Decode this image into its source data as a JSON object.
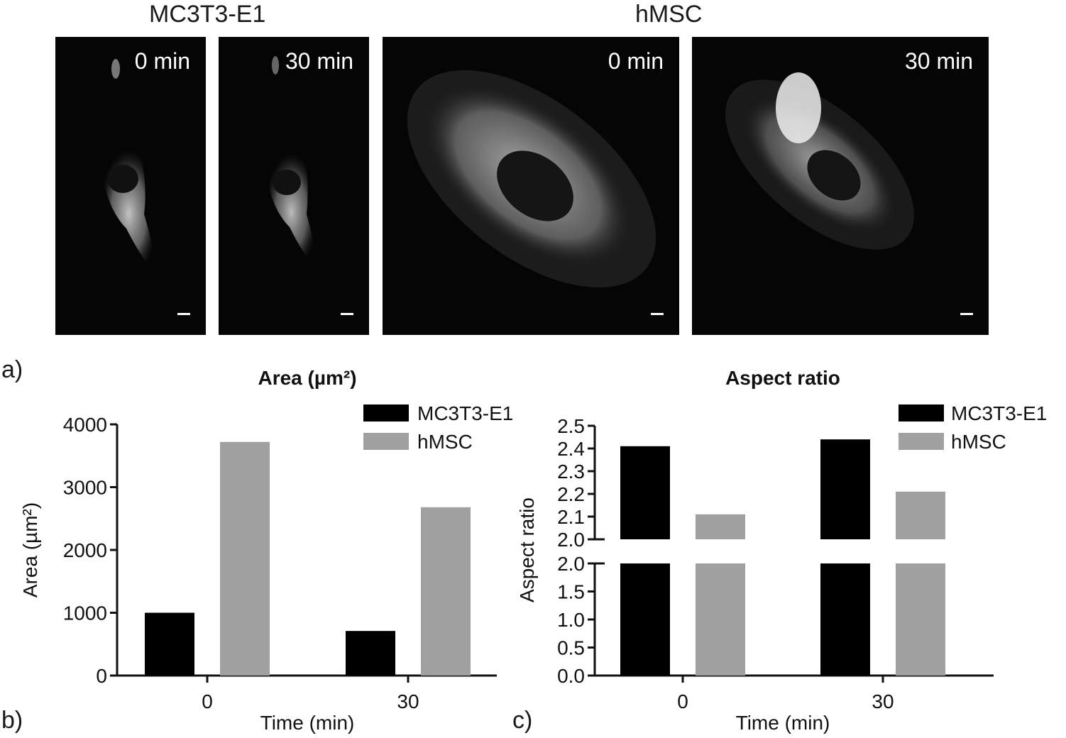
{
  "figure": {
    "group_titles": [
      "MC3T3-E1",
      "hMSC"
    ],
    "panels": [
      {
        "cell": "MC3T3-E1",
        "time": "0 min"
      },
      {
        "cell": "MC3T3-E1",
        "time": "30 min"
      },
      {
        "cell": "hMSC",
        "time": "0 min"
      },
      {
        "cell": "hMSC",
        "time": "30 min"
      }
    ],
    "panel_letters": [
      "a)",
      "b)",
      "c)"
    ]
  },
  "chart_data": [
    {
      "type": "bar",
      "title": "Area (µm²)",
      "xlabel": "Time (min)",
      "ylabel": "Area (µm²)",
      "categories": [
        "0",
        "30"
      ],
      "series": [
        {
          "name": "MC3T3-E1",
          "values": [
            1000,
            710
          ],
          "color": "#000000"
        },
        {
          "name": "hMSC",
          "values": [
            3720,
            2680
          ],
          "color": "#a0a0a0"
        }
      ],
      "ylim": [
        0,
        4000
      ],
      "yticks": [
        "0",
        "1000",
        "2000",
        "3000",
        "4000"
      ],
      "legend": "top-right",
      "grid": false
    },
    {
      "type": "bar",
      "title": "Aspect ratio",
      "xlabel": "Time (min)",
      "ylabel": "Aspect ratio",
      "categories": [
        "0",
        "30"
      ],
      "series": [
        {
          "name": "MC3T3-E1",
          "values": [
            2.41,
            2.44
          ],
          "color": "#000000"
        },
        {
          "name": "hMSC",
          "values": [
            2.11,
            2.21
          ],
          "color": "#a0a0a0"
        }
      ],
      "ylim": [
        0,
        2.5
      ],
      "axis_break": {
        "lower": [
          0,
          2.0
        ],
        "upper": [
          2.0,
          2.5
        ]
      },
      "yticks_lower": [
        "0.0",
        "0.5",
        "1.0",
        "1.5",
        "2.0"
      ],
      "yticks_upper": [
        "2.0",
        "2.1",
        "2.2",
        "2.3",
        "2.4",
        "2.5"
      ],
      "legend": "top-right",
      "grid": false
    }
  ]
}
